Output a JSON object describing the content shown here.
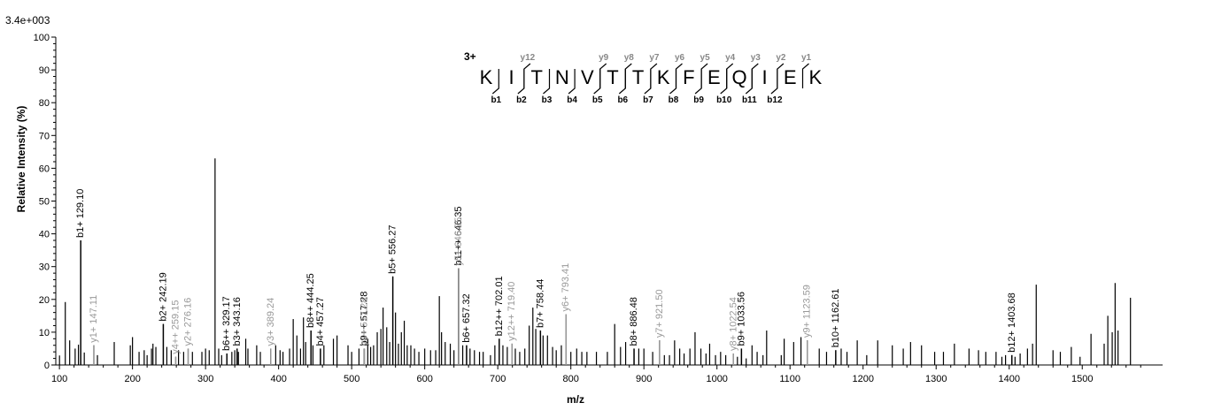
{
  "chart_data": {
    "type": "bar",
    "scale_label": "3.4e+003",
    "xlabel": "m/z",
    "ylabel": "Relative   Intensity (%)",
    "xlim": [
      95,
      1610
    ],
    "ylim": [
      0,
      100
    ],
    "x_ticks": [
      100,
      200,
      300,
      400,
      500,
      600,
      700,
      800,
      900,
      1000,
      1100,
      1200,
      1300,
      1400,
      1500
    ],
    "y_ticks": [
      0,
      10,
      20,
      30,
      40,
      50,
      60,
      70,
      80,
      90,
      100
    ],
    "colors": {
      "b_ion": "#000000",
      "y_ion": "#999999",
      "unassigned": "#000000"
    },
    "peaks": [
      [
        100.1,
        2.9
      ],
      [
        108.0,
        19.2
      ],
      [
        114.0,
        7.5
      ],
      [
        121.5,
        5.0
      ],
      [
        126.0,
        6.2
      ],
      [
        129.1,
        38.0
      ],
      [
        134.0,
        3.8
      ],
      [
        147.1,
        6.0
      ],
      [
        152.0,
        3.0
      ],
      [
        175.0,
        7.0
      ],
      [
        197.0,
        6.0
      ],
      [
        200.0,
        8.5
      ],
      [
        209.0,
        4.0
      ],
      [
        216.0,
        4.5
      ],
      [
        220.0,
        3.0
      ],
      [
        226.0,
        5.0
      ],
      [
        228.0,
        6.5
      ],
      [
        232.0,
        5.5
      ],
      [
        242.2,
        12.5
      ],
      [
        247.0,
        5.5
      ],
      [
        253.0,
        4.5
      ],
      [
        259.2,
        2.5
      ],
      [
        263.0,
        4.5
      ],
      [
        270.0,
        4.0
      ],
      [
        276.2,
        5.0
      ],
      [
        282.0,
        4.0
      ],
      [
        295.0,
        4.0
      ],
      [
        300.0,
        5.0
      ],
      [
        305.0,
        4.5
      ],
      [
        313.0,
        63.0
      ],
      [
        318.0,
        5.0
      ],
      [
        322.0,
        3.0
      ],
      [
        329.2,
        3.5
      ],
      [
        336.0,
        4.0
      ],
      [
        340.0,
        4.5
      ],
      [
        343.2,
        5.0
      ],
      [
        345.0,
        4.0
      ],
      [
        355.0,
        8.0
      ],
      [
        358.0,
        5.0
      ],
      [
        370.0,
        6.0
      ],
      [
        375.0,
        4.0
      ],
      [
        389.2,
        5.0
      ],
      [
        396.0,
        6.0
      ],
      [
        402.0,
        4.5
      ],
      [
        406.0,
        4.0
      ],
      [
        415.0,
        5.0
      ],
      [
        420.0,
        14.0
      ],
      [
        425.0,
        9.0
      ],
      [
        430.0,
        5.0
      ],
      [
        434.0,
        14.5
      ],
      [
        437.0,
        7.0
      ],
      [
        444.3,
        10.5
      ],
      [
        447.0,
        6.0
      ],
      [
        457.3,
        5.0
      ],
      [
        462.0,
        6.0
      ],
      [
        475.0,
        8.0
      ],
      [
        480.0,
        9.0
      ],
      [
        495.0,
        6.0
      ],
      [
        500.0,
        4.0
      ],
      [
        510.0,
        5.0
      ],
      [
        517.3,
        5.0
      ],
      [
        522.0,
        8.0
      ],
      [
        526.0,
        5.5
      ],
      [
        530.0,
        6.0
      ],
      [
        535.0,
        10.0
      ],
      [
        540.0,
        11.0
      ],
      [
        543.0,
        17.5
      ],
      [
        548.0,
        11.5
      ],
      [
        552.0,
        7.0
      ],
      [
        556.3,
        27.0
      ],
      [
        560.0,
        16.0
      ],
      [
        564.0,
        6.5
      ],
      [
        568.0,
        10.0
      ],
      [
        572.0,
        13.5
      ],
      [
        576.0,
        6.0
      ],
      [
        581.0,
        6.0
      ],
      [
        586.0,
        5.0
      ],
      [
        592.0,
        4.0
      ],
      [
        600.0,
        5.0
      ],
      [
        608.0,
        4.5
      ],
      [
        615.0,
        4.5
      ],
      [
        620.0,
        21.0
      ],
      [
        623.0,
        10.0
      ],
      [
        628.0,
        7.0
      ],
      [
        635.0,
        6.5
      ],
      [
        640.0,
        4.5
      ],
      [
        646.4,
        29.5
      ],
      [
        652.0,
        6.0
      ],
      [
        657.3,
        6.0
      ],
      [
        662.0,
        5.0
      ],
      [
        668.0,
        4.5
      ],
      [
        675.0,
        4.0
      ],
      [
        680.0,
        4.0
      ],
      [
        690.0,
        3.0
      ],
      [
        696.0,
        6.0
      ],
      [
        702.0,
        8.0
      ],
      [
        707.0,
        6.0
      ],
      [
        713.0,
        5.5
      ],
      [
        719.4,
        6.5
      ],
      [
        724.0,
        5.0
      ],
      [
        730.0,
        4.0
      ],
      [
        737.0,
        5.0
      ],
      [
        743.0,
        12.0
      ],
      [
        748.0,
        17.5
      ],
      [
        752.0,
        11.0
      ],
      [
        758.4,
        10.5
      ],
      [
        762.0,
        9.0
      ],
      [
        768.0,
        9.0
      ],
      [
        775.0,
        5.5
      ],
      [
        780.0,
        4.5
      ],
      [
        787.0,
        6.0
      ],
      [
        793.4,
        15.5
      ],
      [
        800.0,
        4.0
      ],
      [
        808.0,
        5.0
      ],
      [
        815.0,
        4.0
      ],
      [
        822.0,
        4.0
      ],
      [
        835.0,
        4.0
      ],
      [
        850.0,
        4.0
      ],
      [
        860.0,
        12.5
      ],
      [
        868.0,
        5.5
      ],
      [
        875.0,
        7.0
      ],
      [
        886.5,
        5.0
      ],
      [
        893.0,
        5.0
      ],
      [
        900.0,
        5.0
      ],
      [
        912.0,
        4.0
      ],
      [
        921.5,
        7.5
      ],
      [
        928.0,
        3.0
      ],
      [
        935.0,
        3.0
      ],
      [
        942.0,
        7.5
      ],
      [
        949.0,
        5.0
      ],
      [
        955.0,
        3.5
      ],
      [
        963.0,
        5.0
      ],
      [
        970.0,
        10.0
      ],
      [
        978.0,
        5.0
      ],
      [
        985.0,
        3.5
      ],
      [
        990.0,
        6.5
      ],
      [
        998.0,
        3.0
      ],
      [
        1005.0,
        4.0
      ],
      [
        1012.0,
        3.0
      ],
      [
        1022.5,
        3.5
      ],
      [
        1028.0,
        2.5
      ],
      [
        1033.6,
        5.0
      ],
      [
        1040.0,
        2.0
      ],
      [
        1048.0,
        6.0
      ],
      [
        1055.0,
        4.0
      ],
      [
        1063.0,
        3.0
      ],
      [
        1068.0,
        10.5
      ],
      [
        1088.0,
        3.0
      ],
      [
        1092.0,
        8.0
      ],
      [
        1105.0,
        7.0
      ],
      [
        1115.0,
        8.5
      ],
      [
        1123.6,
        7.5
      ],
      [
        1140.0,
        5.0
      ],
      [
        1150.0,
        4.0
      ],
      [
        1162.6,
        4.5
      ],
      [
        1170.0,
        5.0
      ],
      [
        1178.0,
        4.0
      ],
      [
        1192.0,
        7.5
      ],
      [
        1205.0,
        3.0
      ],
      [
        1220.0,
        7.5
      ],
      [
        1240.0,
        6.0
      ],
      [
        1255.0,
        5.0
      ],
      [
        1265.0,
        7.0
      ],
      [
        1280.0,
        6.0
      ],
      [
        1298.0,
        4.0
      ],
      [
        1310.0,
        4.0
      ],
      [
        1325.0,
        6.5
      ],
      [
        1345.0,
        5.0
      ],
      [
        1358.0,
        4.5
      ],
      [
        1368.0,
        4.0
      ],
      [
        1382.0,
        4.0
      ],
      [
        1390.0,
        2.5
      ],
      [
        1395.0,
        3.0
      ],
      [
        1403.7,
        3.0
      ],
      [
        1408.0,
        2.5
      ],
      [
        1415.0,
        3.5
      ],
      [
        1425.0,
        5.0
      ],
      [
        1432.0,
        6.5
      ],
      [
        1437.0,
        24.5
      ],
      [
        1460.0,
        4.5
      ],
      [
        1470.0,
        4.0
      ],
      [
        1485.0,
        5.5
      ],
      [
        1497.0,
        2.5
      ],
      [
        1512.0,
        9.5
      ],
      [
        1530.0,
        6.5
      ],
      [
        1535.0,
        15.0
      ],
      [
        1541.0,
        10.0
      ],
      [
        1545.0,
        25.0
      ],
      [
        1549.0,
        10.5
      ],
      [
        1566.0,
        20.5
      ]
    ],
    "labeled_peaks": [
      {
        "mz": 129.1,
        "intensity": 38.0,
        "label": "b1+ 129.10",
        "ion": "b"
      },
      {
        "mz": 147.11,
        "intensity": 6.0,
        "label": "y1+ 147.11",
        "ion": "y"
      },
      {
        "mz": 242.19,
        "intensity": 12.5,
        "label": "b2+ 242.19",
        "ion": "b"
      },
      {
        "mz": 259.15,
        "intensity": 2.5,
        "label": "y4++ 259.15",
        "ion": "y"
      },
      {
        "mz": 276.16,
        "intensity": 5.0,
        "label": "y2+ 276.16",
        "ion": "y"
      },
      {
        "mz": 329.17,
        "intensity": 3.5,
        "label": "b6++ 329.17",
        "ion": "b"
      },
      {
        "mz": 343.16,
        "intensity": 5.0,
        "label": "b3+ 343.16",
        "ion": "b"
      },
      {
        "mz": 389.24,
        "intensity": 5.0,
        "label": "y3+ 389.24",
        "ion": "y"
      },
      {
        "mz": 444.25,
        "intensity": 10.5,
        "label": "b8++ 444.25",
        "ion": "b"
      },
      {
        "mz": 457.27,
        "intensity": 5.0,
        "label": "b4+ 457.27",
        "ion": "b"
      },
      {
        "mz": 517.28,
        "intensity": 5.0,
        "label": "b9++ 517.28",
        "ion": "b"
      },
      {
        "mz": 517.28,
        "intensity": 5.0,
        "label": "y4+ 517.28",
        "ion": "y"
      },
      {
        "mz": 556.27,
        "intensity": 27.0,
        "label": "b5+ 556.27",
        "ion": "b"
      },
      {
        "mz": 646.35,
        "intensity": 29.5,
        "label": "b11++ 646.35",
        "ion": "b"
      },
      {
        "mz": 646.35,
        "intensity": 29.5,
        "label": "y5+ 646.35",
        "ion": "y"
      },
      {
        "mz": 657.32,
        "intensity": 6.0,
        "label": "b6+ 657.32",
        "ion": "b"
      },
      {
        "mz": 702.01,
        "intensity": 8.0,
        "label": "b12++ 702.01",
        "ion": "b"
      },
      {
        "mz": 719.4,
        "intensity": 6.5,
        "label": "y12++ 719.40",
        "ion": "y"
      },
      {
        "mz": 758.44,
        "intensity": 10.5,
        "label": "b7+ 758.44",
        "ion": "b"
      },
      {
        "mz": 793.41,
        "intensity": 15.5,
        "label": "y6+ 793.41",
        "ion": "y"
      },
      {
        "mz": 886.48,
        "intensity": 5.0,
        "label": "b8+ 886.48",
        "ion": "b"
      },
      {
        "mz": 921.5,
        "intensity": 7.5,
        "label": "y7+ 921.50",
        "ion": "y"
      },
      {
        "mz": 1022.54,
        "intensity": 3.5,
        "label": "y8+ 1022.54",
        "ion": "y"
      },
      {
        "mz": 1033.56,
        "intensity": 5.0,
        "label": "b9+ 1033.56",
        "ion": "b"
      },
      {
        "mz": 1123.59,
        "intensity": 7.5,
        "label": "y9+ 1123.59",
        "ion": "y"
      },
      {
        "mz": 1162.61,
        "intensity": 4.5,
        "label": "b10+ 1162.61",
        "ion": "b"
      },
      {
        "mz": 1403.68,
        "intensity": 3.0,
        "label": "b12+ 1403.68",
        "ion": "b"
      }
    ],
    "sequence": {
      "charge": "3+",
      "residues": [
        "K",
        "I",
        "T",
        "N",
        "V",
        "T",
        "T",
        "K",
        "F",
        "E",
        "Q",
        "I",
        "E",
        "K"
      ],
      "b_ions": [
        {
          "label": "b1",
          "after": 0
        },
        {
          "label": "b2",
          "after": 1
        },
        {
          "label": "b3",
          "after": 2
        },
        {
          "label": "b4",
          "after": 3
        },
        {
          "label": "b5",
          "after": 4
        },
        {
          "label": "b6",
          "after": 5
        },
        {
          "label": "b7",
          "after": 6
        },
        {
          "label": "b8",
          "after": 7
        },
        {
          "label": "b9",
          "after": 8
        },
        {
          "label": "b10",
          "after": 9
        },
        {
          "label": "b11",
          "after": 10
        },
        {
          "label": "b12",
          "after": 11
        }
      ],
      "y_ions": [
        {
          "label": "y12",
          "after": 1
        },
        {
          "label": "y9",
          "after": 4
        },
        {
          "label": "y8",
          "after": 5
        },
        {
          "label": "y7",
          "after": 6
        },
        {
          "label": "y6",
          "after": 7
        },
        {
          "label": "y5",
          "after": 8
        },
        {
          "label": "y4",
          "after": 9
        },
        {
          "label": "y3",
          "after": 10
        },
        {
          "label": "y2",
          "after": 11
        },
        {
          "label": "y1",
          "after": 12
        }
      ]
    }
  }
}
